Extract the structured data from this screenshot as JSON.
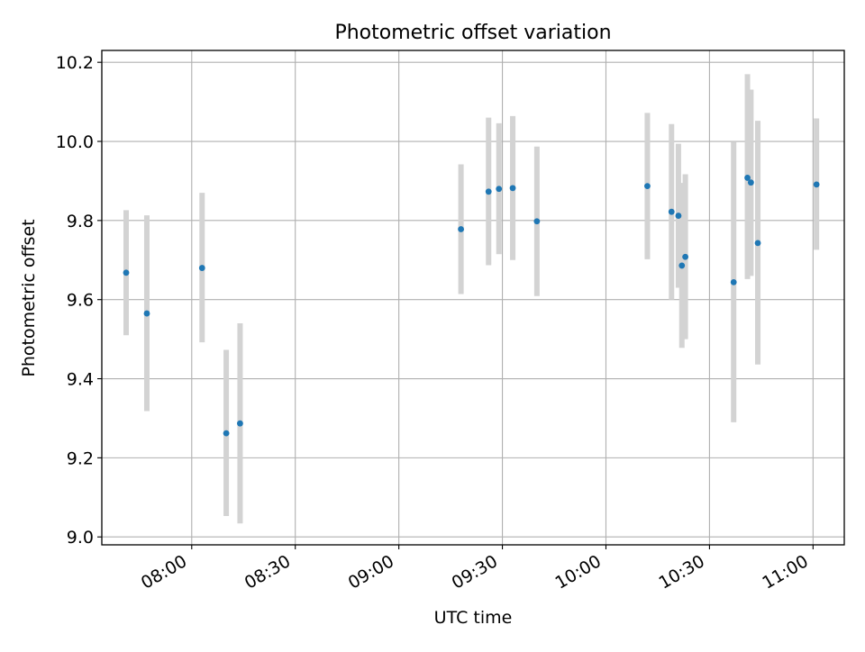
{
  "chart_data": {
    "type": "scatter",
    "title": "Photometric offset variation",
    "xlabel": "UTC time",
    "ylabel": "Photometric offset",
    "x_scale": "time",
    "x_unit": "minutes",
    "xlim": [
      "07:41",
      "11:02"
    ],
    "ylim": [
      8.98,
      10.23
    ],
    "x_ticks": [
      {
        "label": "08:00",
        "t": "08:00"
      },
      {
        "label": "08:30",
        "t": "08:30"
      },
      {
        "label": "09:00",
        "t": "09:00"
      },
      {
        "label": "09:30",
        "t": "09:30"
      },
      {
        "label": "10:00",
        "t": "10:00"
      },
      {
        "label": "10:30",
        "t": "10:30"
      },
      {
        "label": "11:00",
        "t": "11:00"
      }
    ],
    "y_ticks": [
      {
        "label": "9.0",
        "v": 9.0
      },
      {
        "label": "9.2",
        "v": 9.2
      },
      {
        "label": "9.4",
        "v": 9.4
      },
      {
        "label": "9.6",
        "v": 9.6
      },
      {
        "label": "9.8",
        "v": 9.8
      },
      {
        "label": "10.0",
        "v": 10.0
      },
      {
        "label": "10.2",
        "v": 10.2
      }
    ],
    "grid": true,
    "legend": "none",
    "marker_color": "#1f77b4",
    "errorbar_color": "#d3d3d3",
    "points": [
      {
        "t": "07:41",
        "y": 9.668,
        "lo": 9.51,
        "hi": 9.826
      },
      {
        "t": "07:47",
        "y": 9.565,
        "lo": 9.318,
        "hi": 9.813
      },
      {
        "t": "08:03",
        "y": 9.68,
        "lo": 9.492,
        "hi": 9.87
      },
      {
        "t": "08:10",
        "y": 9.262,
        "lo": 9.053,
        "hi": 9.473
      },
      {
        "t": "08:14",
        "y": 9.287,
        "lo": 9.034,
        "hi": 9.54
      },
      {
        "t": "09:18",
        "y": 9.778,
        "lo": 9.614,
        "hi": 9.942
      },
      {
        "t": "09:26",
        "y": 9.873,
        "lo": 9.687,
        "hi": 10.06
      },
      {
        "t": "09:29",
        "y": 9.88,
        "lo": 9.715,
        "hi": 10.046
      },
      {
        "t": "09:33",
        "y": 9.882,
        "lo": 9.7,
        "hi": 10.064
      },
      {
        "t": "09:40",
        "y": 9.798,
        "lo": 9.609,
        "hi": 9.987
      },
      {
        "t": "10:12",
        "y": 9.887,
        "lo": 9.702,
        "hi": 10.072
      },
      {
        "t": "10:19",
        "y": 9.822,
        "lo": 9.6,
        "hi": 10.044
      },
      {
        "t": "10:21",
        "y": 9.812,
        "lo": 9.63,
        "hi": 9.994
      },
      {
        "t": "10:22",
        "y": 9.686,
        "lo": 9.478,
        "hi": 9.895
      },
      {
        "t": "10:23",
        "y": 9.708,
        "lo": 9.5,
        "hi": 9.917
      },
      {
        "t": "10:37",
        "y": 9.644,
        "lo": 9.29,
        "hi": 9.998
      },
      {
        "t": "10:41",
        "y": 9.908,
        "lo": 9.652,
        "hi": 10.17
      },
      {
        "t": "10:42",
        "y": 9.896,
        "lo": 9.66,
        "hi": 10.131
      },
      {
        "t": "10:44",
        "y": 9.743,
        "lo": 9.436,
        "hi": 10.052
      },
      {
        "t": "11:01",
        "y": 9.891,
        "lo": 9.726,
        "hi": 10.058
      }
    ]
  }
}
